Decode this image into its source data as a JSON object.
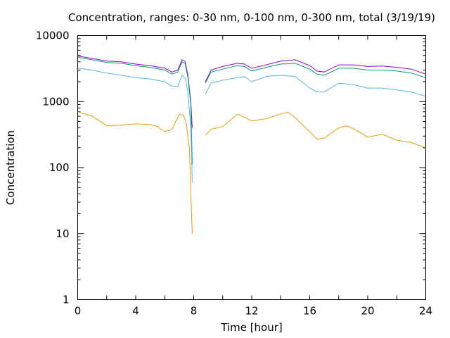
{
  "chart_data": {
    "type": "line",
    "title": "Concentration, ranges: 0-30 nm, 0-100 nm, 0-300 nm, total (3/19/19)",
    "xlabel": "Time [hour]",
    "ylabel": "Concentration",
    "xlim": [
      0,
      24
    ],
    "ylim": [
      1,
      10000
    ],
    "y_scale": "log",
    "grid": false,
    "x_ticks": [
      "0",
      "4",
      "8",
      "12",
      "16",
      "20",
      "24"
    ],
    "y_ticks": [
      "1",
      "10",
      "100",
      "1000",
      "10000"
    ],
    "series": [
      {
        "color": "#9400d3",
        "points": [
          [
            0,
            4900
          ],
          [
            1,
            4500
          ],
          [
            2,
            4100
          ],
          [
            3,
            4000
          ],
          [
            4,
            3700
          ],
          [
            5,
            3500
          ],
          [
            6,
            3200
          ],
          [
            6.5,
            2800
          ],
          [
            6.9,
            3000
          ],
          [
            7.2,
            4300
          ],
          [
            7.4,
            4100
          ],
          [
            7.6,
            2500
          ],
          [
            7.8,
            1000
          ],
          [
            7.9,
            400
          ],
          null,
          [
            8.8,
            2000
          ],
          [
            9.2,
            3000
          ],
          [
            10,
            3400
          ],
          [
            11,
            3800
          ],
          [
            11.5,
            3700
          ],
          [
            12,
            3200
          ],
          [
            13,
            3600
          ],
          [
            14,
            4100
          ],
          [
            15,
            4300
          ],
          [
            16,
            3500
          ],
          [
            16.5,
            2900
          ],
          [
            17,
            2800
          ],
          [
            18,
            3600
          ],
          [
            19,
            3600
          ],
          [
            20,
            3400
          ],
          [
            21,
            3450
          ],
          [
            22,
            3300
          ],
          [
            23,
            3100
          ],
          [
            24,
            2600
          ]
        ]
      },
      {
        "color": "#009e73",
        "points": [
          [
            0,
            4700
          ],
          [
            1,
            4300
          ],
          [
            2,
            3900
          ],
          [
            3,
            3800
          ],
          [
            4,
            3500
          ],
          [
            5,
            3300
          ],
          [
            6,
            3000
          ],
          [
            6.5,
            2600
          ],
          [
            6.9,
            2800
          ],
          [
            7.2,
            4000
          ],
          [
            7.4,
            3800
          ],
          [
            7.6,
            2300
          ],
          [
            7.8,
            900
          ],
          [
            7.9,
            110
          ],
          null,
          [
            8.8,
            1900
          ],
          [
            9.2,
            2800
          ],
          [
            10,
            3100
          ],
          [
            11,
            3500
          ],
          [
            11.5,
            3400
          ],
          [
            12,
            2900
          ],
          [
            13,
            3300
          ],
          [
            14,
            3700
          ],
          [
            15,
            3800
          ],
          [
            16,
            3100
          ],
          [
            16.5,
            2600
          ],
          [
            17,
            2500
          ],
          [
            18,
            3200
          ],
          [
            19,
            3200
          ],
          [
            20,
            3000
          ],
          [
            21,
            3000
          ],
          [
            22,
            2900
          ],
          [
            23,
            2700
          ],
          [
            24,
            2300
          ]
        ]
      },
      {
        "color": "#56b4e9",
        "points": [
          [
            0,
            3200
          ],
          [
            1,
            3000
          ],
          [
            2,
            2700
          ],
          [
            3,
            2500
          ],
          [
            4,
            2300
          ],
          [
            5,
            2200
          ],
          [
            6,
            2000
          ],
          [
            6.5,
            1700
          ],
          [
            6.9,
            1700
          ],
          [
            7.2,
            2500
          ],
          [
            7.4,
            2300
          ],
          [
            7.6,
            1400
          ],
          [
            7.8,
            400
          ],
          [
            7.9,
            60
          ],
          null,
          [
            8.8,
            1300
          ],
          [
            9.2,
            1900
          ],
          [
            10,
            2100
          ],
          [
            11,
            2300
          ],
          [
            11.5,
            2400
          ],
          [
            12,
            2000
          ],
          [
            13,
            2400
          ],
          [
            14,
            2500
          ],
          [
            15,
            2400
          ],
          [
            16,
            1600
          ],
          [
            16.5,
            1400
          ],
          [
            17,
            1400
          ],
          [
            18,
            1900
          ],
          [
            19,
            1800
          ],
          [
            20,
            1600
          ],
          [
            21,
            1600
          ],
          [
            22,
            1500
          ],
          [
            23,
            1400
          ],
          [
            24,
            1200
          ]
        ]
      },
      {
        "color": "#e69f00",
        "points": [
          [
            0,
            700
          ],
          [
            1,
            600
          ],
          [
            2,
            430
          ],
          [
            3,
            440
          ],
          [
            4,
            460
          ],
          [
            5,
            450
          ],
          [
            5.5,
            420
          ],
          [
            6,
            350
          ],
          [
            6.5,
            380
          ],
          [
            7,
            640
          ],
          [
            7.3,
            620
          ],
          [
            7.5,
            450
          ],
          [
            7.7,
            200
          ],
          [
            7.85,
            20
          ],
          [
            7.9,
            10
          ],
          null,
          [
            8.8,
            310
          ],
          [
            9.2,
            380
          ],
          [
            10,
            420
          ],
          [
            11,
            640
          ],
          [
            11.5,
            580
          ],
          [
            12,
            510
          ],
          [
            13,
            550
          ],
          [
            14,
            650
          ],
          [
            14.5,
            690
          ],
          [
            15,
            570
          ],
          [
            16,
            350
          ],
          [
            16.5,
            270
          ],
          [
            17,
            280
          ],
          [
            18,
            400
          ],
          [
            18.5,
            430
          ],
          [
            19,
            390
          ],
          [
            20,
            290
          ],
          [
            21,
            320
          ],
          [
            22,
            260
          ],
          [
            23,
            240
          ],
          [
            24,
            200
          ]
        ]
      }
    ]
  }
}
